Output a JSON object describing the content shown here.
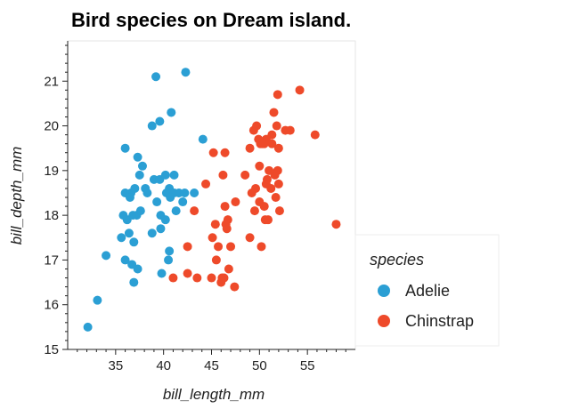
{
  "chart_data": {
    "type": "scatter",
    "title": "Bird species on Dream island.",
    "xlabel": "bill_length_mm",
    "ylabel": "bill_depth_mm",
    "xlim": [
      30,
      60
    ],
    "ylim": [
      15,
      21.9
    ],
    "x_ticks": [
      35,
      40,
      45,
      50,
      55
    ],
    "y_ticks": [
      15,
      16,
      17,
      18,
      19,
      20,
      21
    ],
    "grid": false,
    "legend": {
      "title": "species",
      "placement": "right"
    },
    "series": [
      {
        "name": "Adelie",
        "color": "#2b9fd4",
        "points": [
          [
            39.2,
            21.1
          ],
          [
            42.3,
            21.2
          ],
          [
            38.8,
            20.0
          ],
          [
            39.6,
            20.1
          ],
          [
            40.8,
            20.3
          ],
          [
            44.1,
            19.7
          ],
          [
            36.0,
            19.5
          ],
          [
            37.3,
            19.3
          ],
          [
            37.8,
            19.1
          ],
          [
            37.5,
            18.9
          ],
          [
            39.0,
            18.8
          ],
          [
            39.6,
            18.8
          ],
          [
            40.2,
            18.9
          ],
          [
            41.1,
            18.9
          ],
          [
            38.1,
            18.6
          ],
          [
            40.6,
            18.6
          ],
          [
            36.0,
            18.5
          ],
          [
            36.6,
            18.5
          ],
          [
            37.0,
            18.6
          ],
          [
            38.3,
            18.5
          ],
          [
            40.3,
            18.5
          ],
          [
            41.1,
            18.5
          ],
          [
            41.6,
            18.5
          ],
          [
            42.2,
            18.5
          ],
          [
            43.2,
            18.5
          ],
          [
            36.5,
            18.4
          ],
          [
            40.7,
            18.4
          ],
          [
            39.3,
            18.3
          ],
          [
            42.0,
            18.3
          ],
          [
            35.8,
            18.0
          ],
          [
            36.2,
            17.9
          ],
          [
            36.8,
            18.0
          ],
          [
            37.2,
            18.0
          ],
          [
            37.6,
            18.1
          ],
          [
            39.7,
            18.0
          ],
          [
            40.2,
            17.9
          ],
          [
            41.3,
            18.1
          ],
          [
            36.4,
            17.6
          ],
          [
            36.9,
            17.4
          ],
          [
            38.8,
            17.6
          ],
          [
            39.7,
            17.7
          ],
          [
            35.6,
            17.5
          ],
          [
            40.6,
            17.2
          ],
          [
            34.0,
            17.1
          ],
          [
            40.5,
            17.0
          ],
          [
            36.0,
            17.0
          ],
          [
            36.7,
            16.9
          ],
          [
            37.3,
            16.8
          ],
          [
            39.8,
            16.7
          ],
          [
            36.9,
            16.5
          ],
          [
            33.1,
            16.1
          ],
          [
            32.1,
            15.5
          ]
        ]
      },
      {
        "name": "Chinstrap",
        "color": "#ee4a2a",
        "points": [
          [
            54.2,
            20.8
          ],
          [
            51.9,
            20.7
          ],
          [
            51.5,
            20.3
          ],
          [
            52.7,
            19.9
          ],
          [
            53.2,
            19.9
          ],
          [
            49.7,
            20.0
          ],
          [
            51.8,
            20.0
          ],
          [
            46.4,
            19.4
          ],
          [
            45.2,
            19.4
          ],
          [
            52.0,
            19.5
          ],
          [
            50.5,
            19.6
          ],
          [
            49.4,
            19.9
          ],
          [
            50.7,
            19.7
          ],
          [
            49.9,
            19.7
          ],
          [
            50.3,
            19.6
          ],
          [
            51.3,
            19.8
          ],
          [
            49.0,
            19.5
          ],
          [
            50.1,
            19.6
          ],
          [
            55.8,
            19.8
          ],
          [
            51.3,
            19.6
          ],
          [
            50.0,
            19.1
          ],
          [
            51.0,
            19.0
          ],
          [
            51.6,
            18.9
          ],
          [
            51.9,
            19.0
          ],
          [
            50.8,
            18.8
          ],
          [
            48.5,
            18.9
          ],
          [
            46.2,
            18.9
          ],
          [
            49.6,
            18.6
          ],
          [
            50.7,
            18.7
          ],
          [
            52.0,
            18.7
          ],
          [
            51.2,
            18.6
          ],
          [
            49.2,
            18.5
          ],
          [
            44.4,
            18.7
          ],
          [
            50.0,
            18.3
          ],
          [
            51.7,
            18.4
          ],
          [
            47.5,
            18.3
          ],
          [
            50.5,
            18.2
          ],
          [
            46.4,
            18.2
          ],
          [
            49.5,
            18.1
          ],
          [
            52.1,
            18.1
          ],
          [
            43.2,
            18.1
          ],
          [
            50.6,
            17.9
          ],
          [
            46.7,
            17.9
          ],
          [
            45.4,
            17.8
          ],
          [
            46.5,
            17.8
          ],
          [
            50.9,
            17.9
          ],
          [
            58.0,
            17.8
          ],
          [
            46.6,
            17.7
          ],
          [
            49.0,
            17.5
          ],
          [
            47.0,
            17.3
          ],
          [
            42.5,
            17.3
          ],
          [
            45.5,
            17.0
          ],
          [
            50.2,
            17.3
          ],
          [
            45.7,
            17.3
          ],
          [
            45.1,
            17.5
          ],
          [
            46.8,
            16.8
          ],
          [
            42.5,
            16.7
          ],
          [
            43.5,
            16.6
          ],
          [
            41.0,
            16.6
          ],
          [
            45.0,
            16.6
          ],
          [
            46.1,
            16.6
          ],
          [
            46.0,
            16.5
          ],
          [
            46.3,
            16.6
          ],
          [
            47.4,
            16.4
          ]
        ]
      }
    ]
  }
}
